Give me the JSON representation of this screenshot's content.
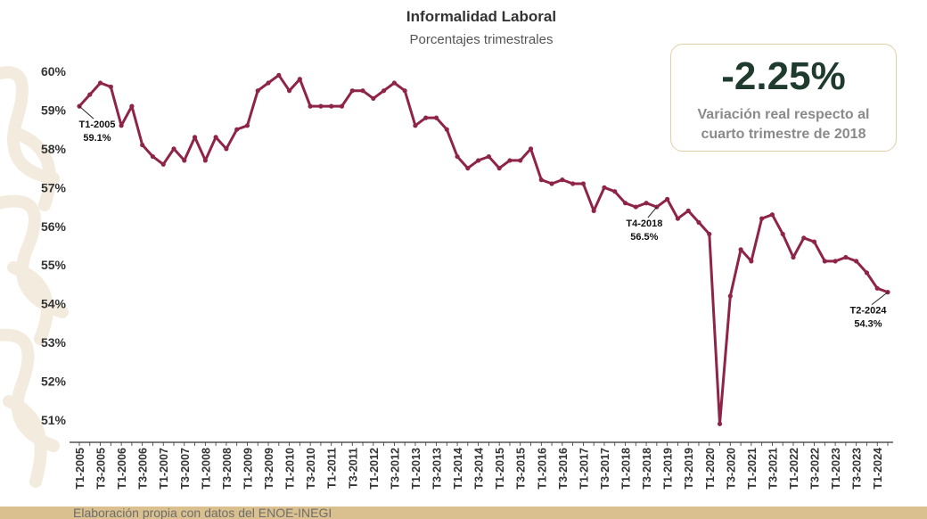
{
  "chart_data": {
    "type": "line",
    "title": "Informalidad Laboral",
    "subtitle": "Porcentajes trimestrales",
    "ylim": [
      50.5,
      60.3
    ],
    "yticks": [
      60,
      59,
      58,
      57,
      56,
      55,
      54,
      53,
      52,
      51
    ],
    "ytick_suffix": "%",
    "xtick_labels": [
      "T1-2005",
      "T3-2005",
      "T1-2006",
      "T3-2006",
      "T1-2007",
      "T3-2007",
      "T1-2008",
      "T3-2008",
      "T1-2009",
      "T3-2009",
      "T1-2010",
      "T3-2010",
      "T1-2011",
      "T3-2011",
      "T1-2012",
      "T3-2012",
      "T1-2013",
      "T3-2013",
      "T1-2014",
      "T3-2014",
      "T1-2015",
      "T3-2015",
      "T1-2016",
      "T3-2016",
      "T1-2017",
      "T3-2017",
      "T1-2018",
      "T3-2018",
      "T1-2019",
      "T3-2019",
      "T1-2020",
      "T3-2020",
      "T1-2021",
      "T3-2021",
      "T1-2022",
      "T3-2022",
      "T1-2023",
      "T3-2023",
      "T1-2024"
    ],
    "line_color": "#8e2448",
    "series": [
      {
        "values": [
          59.1,
          59.4,
          59.7,
          59.6,
          58.6,
          59.1,
          58.1,
          57.8,
          57.6,
          58.0,
          57.7,
          58.3,
          57.7,
          58.3,
          58.0,
          58.5,
          58.6,
          59.5,
          59.7,
          59.9,
          59.5,
          59.8,
          59.1,
          59.1,
          59.1,
          59.1,
          59.5,
          59.5,
          59.3,
          59.5,
          59.7,
          59.5,
          58.6,
          58.8,
          58.8,
          58.5,
          57.8,
          57.5,
          57.7,
          57.8,
          57.5,
          57.7,
          57.7,
          58.0,
          57.2,
          57.1,
          57.2,
          57.1,
          57.1,
          56.4,
          57.0,
          56.9,
          56.6,
          56.5,
          56.6,
          56.5,
          56.7,
          56.2,
          56.4,
          56.1,
          55.8,
          50.9,
          54.2,
          55.4,
          55.1,
          56.2,
          56.3,
          55.8,
          55.2,
          55.7,
          55.6,
          55.1,
          55.1,
          55.2,
          55.1,
          54.8,
          54.4,
          54.3
        ]
      }
    ],
    "annotations": [
      {
        "label": "T1-2005",
        "value": "59.1%",
        "index": 0
      },
      {
        "label": "T4-2018",
        "value": "56.5%",
        "index": 55
      },
      {
        "label": "T2-2024",
        "value": "54.3%",
        "index": 77
      }
    ],
    "grid": false
  },
  "kpi": {
    "value": "-2.25%",
    "description": "Variación real respecto al cuarto trimestre de 2018"
  },
  "footer": {
    "source": "Elaboración propia con datos del ENOE-INEGI"
  },
  "colors": {
    "line": "#8e2448",
    "kpi_value": "#1f3b2d",
    "kpi_border": "#e2cfa5",
    "footer_bar": "#d9c08e"
  }
}
